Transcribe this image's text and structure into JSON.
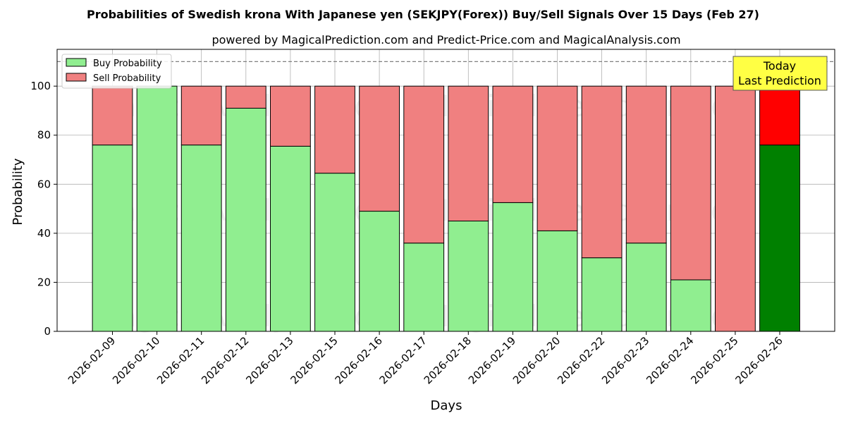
{
  "chart_data": {
    "type": "bar",
    "title": "Probabilities of Swedish krona With Japanese yen (SEKJPY(Forex)) Buy/Sell Signals Over 15 Days (Feb 27)",
    "subtitle": "powered by MagicalPrediction.com and Predict-Price.com and MagicalAnalysis.com",
    "xlabel": "Days",
    "ylabel": "Probability",
    "ylim": [
      0,
      115
    ],
    "yticks": [
      0,
      20,
      40,
      60,
      80,
      100
    ],
    "reference_line": 110,
    "grid": true,
    "legend_position": "top-left",
    "categories": [
      "2026-02-09",
      "2026-02-10",
      "2026-02-11",
      "2026-02-12",
      "2026-02-13",
      "2026-02-15",
      "2026-02-16",
      "2026-02-17",
      "2026-02-18",
      "2026-02-19",
      "2026-02-20",
      "2026-02-22",
      "2026-02-23",
      "2026-02-24",
      "2026-02-25",
      "2026-02-26"
    ],
    "series": [
      {
        "name": "Buy Probability",
        "color": "#90ee90",
        "highlight_color": "#008000",
        "values": [
          76,
          100,
          76,
          91,
          75.5,
          64.5,
          49,
          36,
          45,
          52.5,
          41,
          30,
          36,
          21,
          0,
          76
        ]
      },
      {
        "name": "Sell Probability",
        "color": "#f08080",
        "highlight_color": "#ff0000",
        "values": [
          24,
          0,
          24,
          9,
          24.5,
          35.5,
          51,
          64,
          55,
          47.5,
          59,
          70,
          64,
          79,
          100,
          24
        ]
      }
    ],
    "highlight_index": 15,
    "annotation": {
      "line1": "Today",
      "line2": "Last Prediction",
      "background": "#ffff44"
    },
    "watermarks": [
      "MagicalAnalysis.com",
      "MagicalPrediction.com"
    ]
  }
}
